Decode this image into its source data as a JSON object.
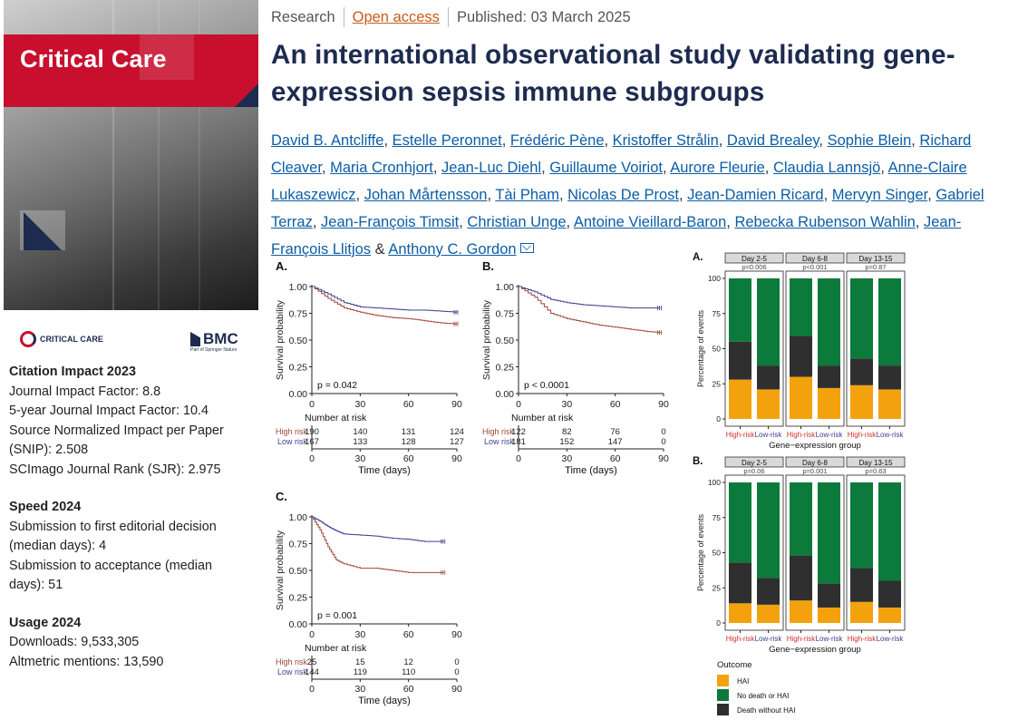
{
  "journal": {
    "cover_title": "Critical Care",
    "logo_text": "CRITICAL CARE",
    "publisher": "BMC",
    "publisher_sub": "Part of Springer Nature"
  },
  "metrics": {
    "citation_title": "Citation Impact 2023",
    "jif": "Journal Impact Factor: 8.8",
    "jif5": "5-year Journal Impact Factor: 10.4",
    "snip": "Source Normalized Impact per Paper (SNIP): 2.508",
    "sjr": "SCImago Journal Rank (SJR): 2.975",
    "speed_title": "Speed 2024",
    "speed1": "Submission to first editorial decision (median days): 4",
    "speed2": "Submission to acceptance (median days): 51",
    "usage_title": "Usage 2024",
    "downloads": "Downloads: 9,533,305",
    "altmetric": "Altmetric mentions: 13,590"
  },
  "article": {
    "type": "Research",
    "access": "Open access",
    "published": "Published: 03 March 2025",
    "title": "An international observational study validating gene-expression sepsis immune subgroups",
    "authors": [
      "David B. Antcliffe",
      "Estelle Peronnet",
      "Frédéric Pène",
      "Kristoffer Strålin",
      "David Brealey",
      "Sophie Blein",
      "Richard Cleaver",
      "Maria Cronhjort",
      "Jean-Luc Diehl",
      "Guillaume Voiriot",
      "Aurore Fleurie",
      "Claudia Lannsjö",
      "Anne-Claire Lukaszewicz",
      "Johan Mårtensson",
      "Tài Pham",
      "Nicolas De Prost",
      "Jean-Damien Ricard",
      "Mervyn Singer",
      "Gabriel Terraz",
      "Jean-François Timsit",
      "Christian Unge",
      "Antoine Vieillard-Baron",
      "Rebecka Rubenson Wahlin",
      "Jean-François Llitjos",
      "Anthony C. Gordon"
    ],
    "author_sep": ", ",
    "last_sep": " & "
  },
  "colors": {
    "high": "#a0453a",
    "low": "#3d3f8f",
    "hai": "#f3a20d",
    "nodeath": "#0b7a3b",
    "death": "#2f2f2f",
    "navy": "#1d2b4f",
    "red": "#c8102e"
  },
  "chart_data": [
    {
      "type": "line",
      "panel": "A.",
      "x": [
        0,
        10,
        20,
        30,
        40,
        50,
        60,
        70,
        80,
        90
      ],
      "series": [
        {
          "name": "High risk",
          "values": [
            1.0,
            0.89,
            0.8,
            0.76,
            0.73,
            0.71,
            0.7,
            0.68,
            0.66,
            0.65
          ]
        },
        {
          "name": "Low risk",
          "values": [
            1.0,
            0.93,
            0.85,
            0.81,
            0.8,
            0.79,
            0.78,
            0.78,
            0.77,
            0.76
          ]
        }
      ],
      "pvalue": "p = 0.042",
      "xlabel": "Time (days)",
      "ylabel": "Survival probability",
      "yticks": [
        "0.00",
        "0.25",
        "0.50",
        "0.75",
        "1.00"
      ],
      "xticks": [
        "0",
        "30",
        "60",
        "90"
      ],
      "xlim": [
        0,
        90
      ],
      "ylim": [
        0,
        1
      ],
      "risk_title": "Number at risk",
      "risk": [
        {
          "label": "High risk",
          "values": [
            "190",
            "140",
            "131",
            "124"
          ]
        },
        {
          "label": "Low risk",
          "values": [
            "167",
            "133",
            "128",
            "127"
          ]
        }
      ]
    },
    {
      "type": "line",
      "panel": "B.",
      "x": [
        0,
        10,
        20,
        30,
        40,
        50,
        60,
        70,
        80,
        88
      ],
      "series": [
        {
          "name": "High risk",
          "values": [
            1.0,
            0.9,
            0.75,
            0.7,
            0.67,
            0.64,
            0.62,
            0.6,
            0.58,
            0.57
          ]
        },
        {
          "name": "Low risk",
          "values": [
            1.0,
            0.95,
            0.88,
            0.85,
            0.83,
            0.82,
            0.81,
            0.8,
            0.8,
            0.8
          ]
        }
      ],
      "pvalue": "p < 0.0001",
      "xlabel": "Time (days)",
      "ylabel": "Survival probability",
      "yticks": [
        "0.00",
        "0.25",
        "0.50",
        "0.75",
        "1.00"
      ],
      "xticks": [
        "0",
        "30",
        "60",
        "90"
      ],
      "xlim": [
        0,
        90
      ],
      "ylim": [
        0,
        1
      ],
      "risk_title": "Number at risk",
      "risk": [
        {
          "label": "High risk",
          "values": [
            "122",
            "82",
            "76",
            "0"
          ]
        },
        {
          "label": "Low risk",
          "values": [
            "181",
            "152",
            "147",
            "0"
          ]
        }
      ]
    },
    {
      "type": "line",
      "panel": "C.",
      "x": [
        0,
        5,
        10,
        15,
        20,
        30,
        40,
        50,
        60,
        70,
        82
      ],
      "series": [
        {
          "name": "High risk",
          "values": [
            1.0,
            0.88,
            0.72,
            0.6,
            0.56,
            0.52,
            0.52,
            0.5,
            0.48,
            0.48,
            0.48
          ]
        },
        {
          "name": "Low risk",
          "values": [
            1.0,
            0.96,
            0.91,
            0.87,
            0.84,
            0.83,
            0.82,
            0.8,
            0.79,
            0.77,
            0.77
          ]
        }
      ],
      "pvalue": "p = 0.001",
      "xlabel": "Time (days)",
      "ylabel": "Survival probability",
      "yticks": [
        "0.00",
        "0.25",
        "0.50",
        "0.75",
        "1.00"
      ],
      "xticks": [
        "0",
        "30",
        "60",
        "90"
      ],
      "xlim": [
        0,
        90
      ],
      "ylim": [
        0,
        1
      ],
      "risk_title": "Number at risk",
      "risk": [
        {
          "label": "High risk",
          "values": [
            "25",
            "15",
            "12",
            "0"
          ]
        },
        {
          "label": "Low risk",
          "values": [
            "144",
            "119",
            "110",
            "0"
          ]
        }
      ]
    },
    {
      "type": "bar",
      "panel": "A.",
      "stacked": true,
      "facets": [
        {
          "label": "Day 2-5",
          "p": "p=0.006"
        },
        {
          "label": "Day 6-8",
          "p": "p<0.001"
        },
        {
          "label": "Day 13-15",
          "p": "p=0.87"
        }
      ],
      "categories": [
        "High-risk",
        "Low-risk"
      ],
      "series_order": [
        "HAI",
        "Death without HAI",
        "No death or HAI"
      ],
      "values": [
        [
          [
            28,
            27,
            45
          ],
          [
            21,
            17,
            62
          ]
        ],
        [
          [
            30,
            29,
            41
          ],
          [
            22,
            16,
            62
          ]
        ],
        [
          [
            24,
            19,
            57
          ],
          [
            21,
            17,
            62
          ]
        ]
      ],
      "xlabel": "Gene−expression group",
      "ylabel": "Percentage of events",
      "yticks": [
        "0",
        "25",
        "50",
        "75",
        "100"
      ],
      "ylim": [
        0,
        100
      ]
    },
    {
      "type": "bar",
      "panel": "B.",
      "stacked": true,
      "facets": [
        {
          "label": "Day 2-5",
          "p": "p=0.06"
        },
        {
          "label": "Day 6-8",
          "p": "p=0.001"
        },
        {
          "label": "Day 13-15",
          "p": "p=0.63"
        }
      ],
      "categories": [
        "High-risk",
        "Low-risk"
      ],
      "series_order": [
        "HAI",
        "Death without HAI",
        "No death or HAI"
      ],
      "values": [
        [
          [
            14,
            29,
            57
          ],
          [
            13,
            19,
            68
          ]
        ],
        [
          [
            16,
            32,
            52
          ],
          [
            11,
            17,
            72
          ]
        ],
        [
          [
            15,
            24,
            61
          ],
          [
            11,
            19,
            70
          ]
        ]
      ],
      "xlabel": "Gene−expression group",
      "ylabel": "Percentage of events",
      "yticks": [
        "0",
        "25",
        "50",
        "75",
        "100"
      ],
      "ylim": [
        0,
        100
      ]
    },
    {
      "type": "legend",
      "title": "Outcome",
      "entries": [
        "HAI",
        "No death or HAI",
        "Death without HAI"
      ]
    }
  ]
}
